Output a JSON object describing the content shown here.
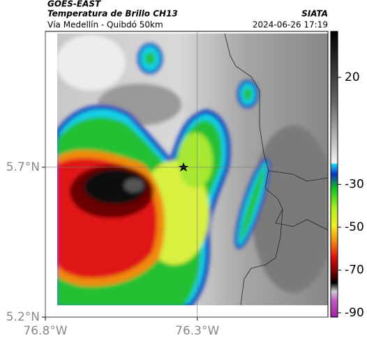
{
  "header": {
    "title": "GOES-EAST",
    "subtitle": "Temperatura de Brillo CH13",
    "source": "SIATA",
    "location": "Vía Medellín - Quibdó 50km",
    "datetime": "2024-06-26 17:19"
  },
  "map": {
    "lon_lim": [
      -76.8,
      -75.87
    ],
    "lat_lim": [
      5.2,
      6.153
    ],
    "lon_ticks": [
      {
        "value": -76.8,
        "label": "76.8°W"
      },
      {
        "value": -76.3,
        "label": "76.3°W"
      }
    ],
    "lat_ticks": [
      {
        "value": 5.7,
        "label": "5.7°N"
      },
      {
        "value": 5.2,
        "label": "5.2°N"
      }
    ]
  },
  "colorbar": {
    "lim": [
      -92,
      41.5
    ],
    "ticks": [
      20,
      -30,
      -50,
      -70,
      -90
    ]
  }
}
